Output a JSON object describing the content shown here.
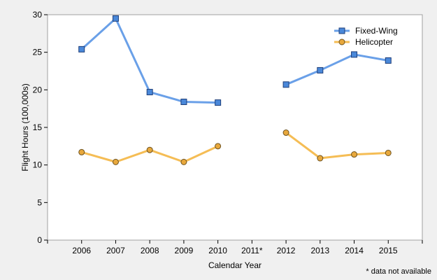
{
  "chart_data": {
    "type": "line",
    "xlabel": "Calendar Year",
    "ylabel": "Flight Hours (100,000s)",
    "categories": [
      "2006",
      "2007",
      "2008",
      "2009",
      "2010",
      "2011*",
      "2012",
      "2013",
      "2014",
      "2015"
    ],
    "ylim": [
      0,
      30
    ],
    "yticks": [
      "0",
      "5",
      "10",
      "15",
      "20",
      "25",
      "30"
    ],
    "series": [
      {
        "name": "Fixed-Wing",
        "color": "#6aa0e8",
        "marker": "square",
        "values": [
          25.4,
          29.5,
          19.7,
          18.4,
          18.3,
          null,
          20.7,
          22.6,
          24.7,
          23.9
        ]
      },
      {
        "name": "Helicopter",
        "color": "#f5bd55",
        "marker": "circle",
        "values": [
          11.7,
          10.4,
          12.0,
          10.4,
          12.5,
          null,
          14.3,
          10.9,
          11.4,
          11.6
        ]
      }
    ],
    "legend_position": "top-right",
    "grid": false,
    "footnote": "* data not available"
  }
}
